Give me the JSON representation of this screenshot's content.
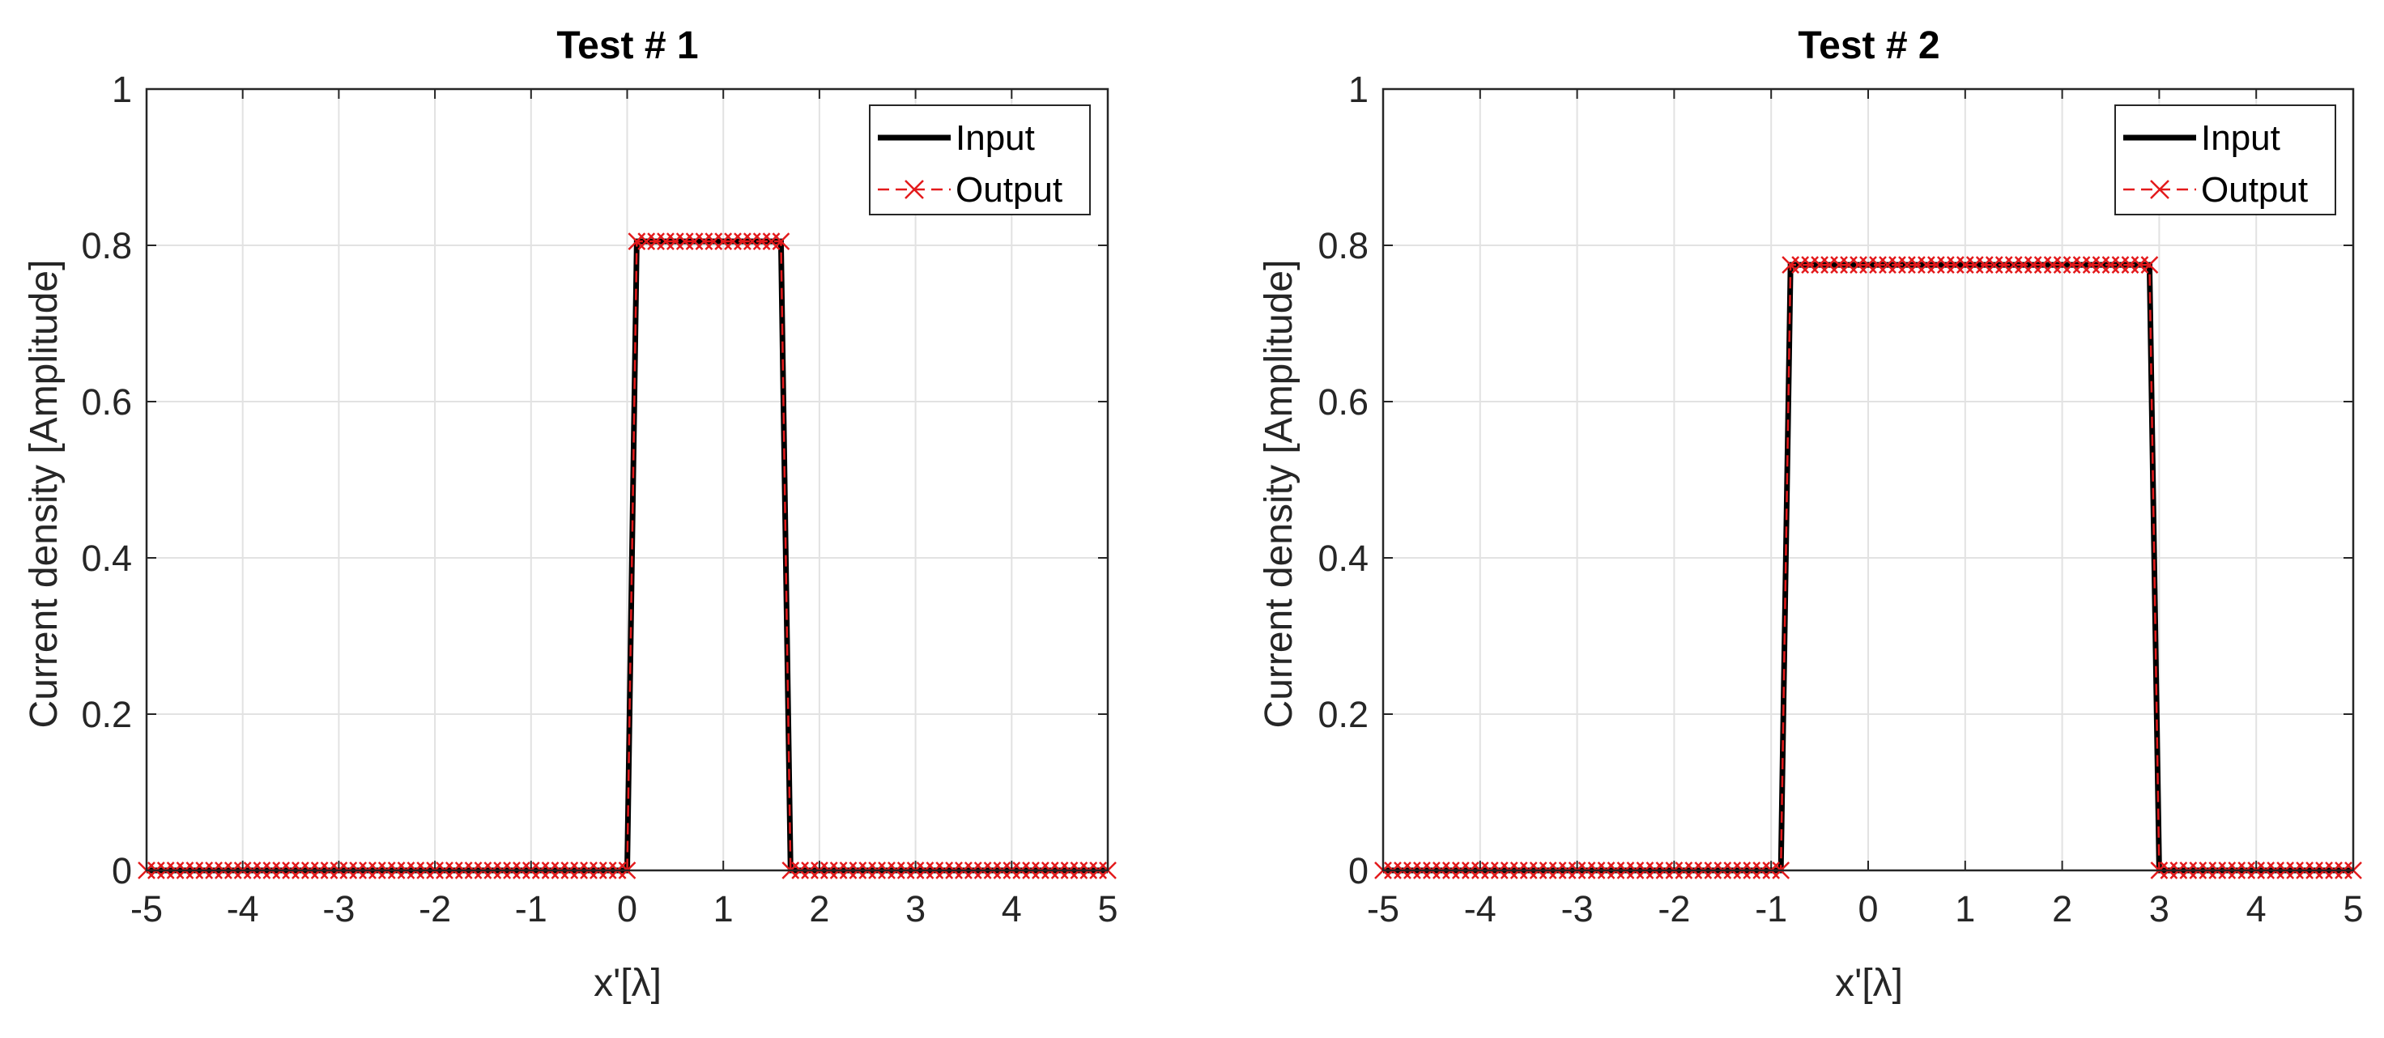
{
  "chart_data": [
    {
      "type": "line",
      "title": "Test # 1",
      "xlabel": "x'[λ]",
      "ylabel": "Current density [Amplitude]",
      "xlim": [
        -5,
        5
      ],
      "ylim": [
        0,
        1
      ],
      "xticks": [
        "-5",
        "-4",
        "-3",
        "-2",
        "-1",
        "0",
        "1",
        "2",
        "3",
        "4",
        "5"
      ],
      "yticks": [
        "0",
        "0.2",
        "0.4",
        "0.6",
        "0.8",
        "1"
      ],
      "grid": true,
      "legend_position": "top-right",
      "series": [
        {
          "name": "Input",
          "color": "#000000",
          "style": "solid",
          "x": [
            -5,
            0.0,
            0.1,
            1.6,
            1.7,
            5
          ],
          "y": [
            0,
            0,
            0.805,
            0.805,
            0,
            0
          ]
        },
        {
          "name": "Output",
          "color": "#e31a1c",
          "style": "dashed-x",
          "x": [
            -5,
            0.0,
            0.1,
            1.6,
            1.7,
            5
          ],
          "y": [
            0,
            0,
            0.805,
            0.805,
            0,
            0
          ]
        }
      ]
    },
    {
      "type": "line",
      "title": "Test # 2",
      "xlabel": "x'[λ]",
      "ylabel": "Current density [Amplitude]",
      "xlim": [
        -5,
        5
      ],
      "ylim": [
        0,
        1
      ],
      "xticks": [
        "-5",
        "-4",
        "-3",
        "-2",
        "-1",
        "0",
        "1",
        "2",
        "3",
        "4",
        "5"
      ],
      "yticks": [
        "0",
        "0.2",
        "0.4",
        "0.6",
        "0.8",
        "1"
      ],
      "grid": true,
      "legend_position": "top-right",
      "series": [
        {
          "name": "Input",
          "color": "#000000",
          "style": "solid",
          "x": [
            -5,
            -0.9,
            -0.8,
            2.9,
            3.0,
            5
          ],
          "y": [
            0,
            0,
            0.775,
            0.775,
            0,
            0
          ]
        },
        {
          "name": "Output",
          "color": "#e31a1c",
          "style": "dashed-x",
          "x": [
            -5,
            -0.9,
            -0.8,
            2.9,
            3.0,
            5
          ],
          "y": [
            0,
            0,
            0.775,
            0.775,
            0,
            0
          ]
        }
      ]
    }
  ]
}
